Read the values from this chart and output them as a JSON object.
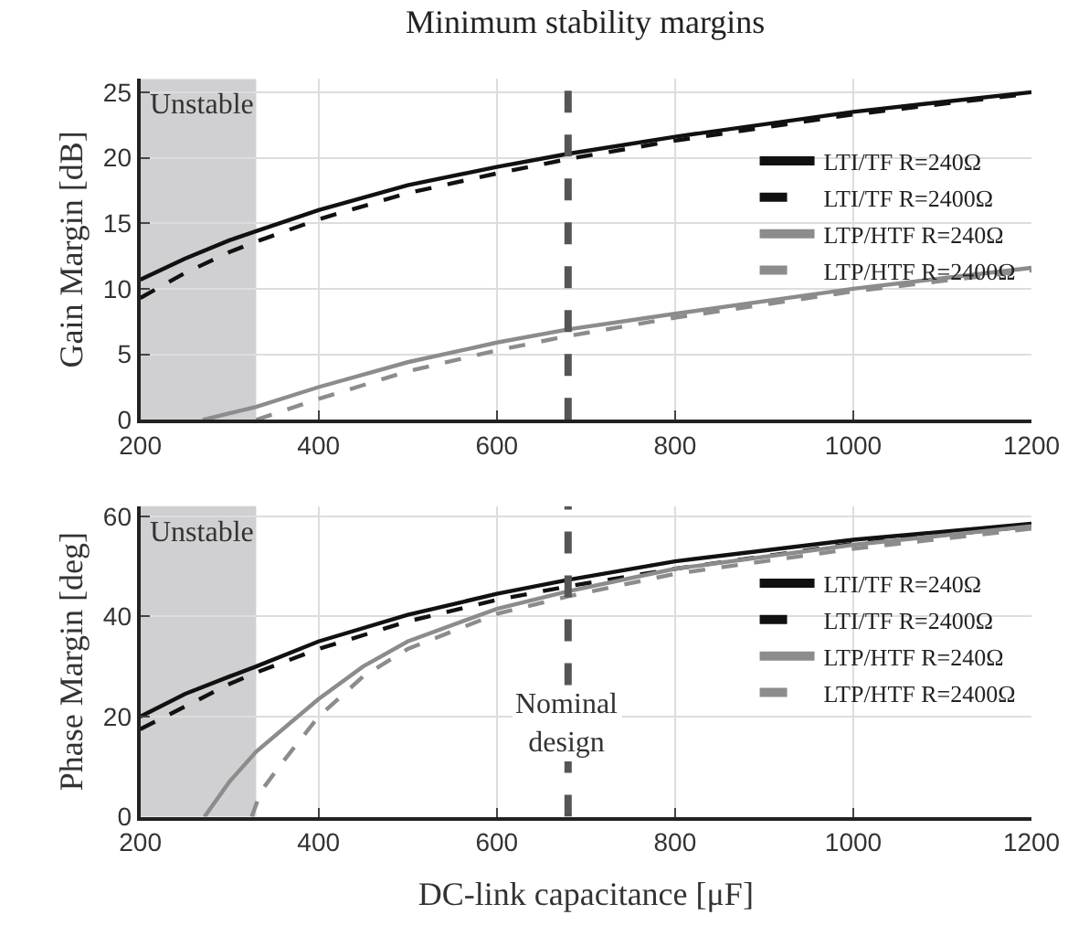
{
  "chart_data": [
    {
      "type": "line",
      "title": "Minimum stability margins",
      "ylabel": "Gain Margin [dB]",
      "xlim": [
        200,
        1200
      ],
      "xticks": [
        200,
        400,
        600,
        800,
        1000,
        1200
      ],
      "ylim": [
        0,
        26
      ],
      "yticks": [
        0,
        5,
        10,
        15,
        20,
        25
      ],
      "grid": true,
      "legend": "top right",
      "line_style": "solid",
      "marker": "none",
      "series": [
        {
          "name": "LTI/TF R=240Ω",
          "color": "#111111",
          "x": [
            200,
            250,
            300,
            330,
            400,
            500,
            600,
            680,
            800,
            1000,
            1200
          ],
          "values": [
            10.7,
            12.3,
            13.7,
            14.4,
            16.0,
            17.9,
            19.3,
            20.3,
            21.6,
            23.5,
            25.0
          ]
        },
        {
          "name": "LTI/TF R=2400Ω",
          "color": "#111111",
          "line_style": "dashed",
          "x": [
            200,
            250,
            300,
            330,
            400,
            500,
            600,
            680,
            800,
            1000,
            1200
          ],
          "values": [
            9.3,
            11.2,
            12.8,
            13.6,
            15.3,
            17.3,
            18.8,
            19.9,
            21.3,
            23.3,
            24.9
          ]
        },
        {
          "name": "LTP/HTF R=240Ω",
          "color": "#8c8c8c",
          "x": [
            270,
            300,
            330,
            400,
            500,
            600,
            680,
            800,
            1000,
            1200
          ],
          "values": [
            0,
            0.5,
            1.0,
            2.5,
            4.4,
            5.9,
            6.9,
            8.1,
            10.0,
            11.6
          ]
        },
        {
          "name": "LTP/HTF R=2400Ω",
          "color": "#8c8c8c",
          "line_style": "dashed",
          "x": [
            330,
            400,
            500,
            600,
            680,
            800,
            1000,
            1200
          ],
          "values": [
            0,
            1.6,
            3.7,
            5.3,
            6.4,
            7.8,
            9.8,
            11.4
          ]
        }
      ],
      "bands": [
        {
          "axis": "x",
          "from": 200,
          "to": 330,
          "label": "Unstable",
          "color": "#d0d0d2"
        }
      ],
      "ref_lines": [
        {
          "axis": "x",
          "value": 680,
          "color": "#555555",
          "line_style": "dashed"
        }
      ]
    },
    {
      "type": "line",
      "xlabel": "DC-link capacitance [μF]",
      "ylabel": "Phase Margin [deg]",
      "xlim": [
        200,
        1200
      ],
      "xticks": [
        200,
        400,
        600,
        800,
        1000,
        1200
      ],
      "ylim": [
        0,
        62
      ],
      "yticks": [
        0,
        20,
        40,
        60
      ],
      "grid": true,
      "legend": "top right",
      "line_style": "solid",
      "marker": "none",
      "series": [
        {
          "name": "LTI/TF R=240Ω",
          "color": "#111111",
          "x": [
            200,
            250,
            300,
            330,
            400,
            500,
            600,
            680,
            800,
            1000,
            1200
          ],
          "values": [
            20,
            24.5,
            28,
            30,
            35,
            40.3,
            44.5,
            47.3,
            51,
            55.3,
            58.5
          ]
        },
        {
          "name": "LTI/TF R=2400Ω",
          "color": "#111111",
          "line_style": "dashed",
          "x": [
            200,
            250,
            300,
            330,
            400,
            500,
            600,
            680,
            800,
            1000,
            1200
          ],
          "values": [
            17.5,
            22,
            26.5,
            28.8,
            33.5,
            39,
            43.3,
            46,
            49.5,
            54.5,
            58
          ]
        },
        {
          "name": "LTP/HTF R=240Ω",
          "color": "#8c8c8c",
          "x": [
            272,
            300,
            330,
            400,
            450,
            500,
            600,
            680,
            800,
            1000,
            1200
          ],
          "values": [
            0,
            7,
            13,
            23.5,
            30,
            35,
            41.5,
            45,
            49.5,
            54.3,
            58
          ]
        },
        {
          "name": "LTP/HTF R=2400Ω",
          "color": "#8c8c8c",
          "line_style": "dashed",
          "x": [
            325,
            335,
            360,
            400,
            450,
            500,
            600,
            680,
            800,
            1000,
            1200
          ],
          "values": [
            0,
            5,
            11,
            20,
            28,
            33.5,
            40.5,
            44,
            48.5,
            53.5,
            57.5
          ]
        }
      ],
      "bands": [
        {
          "axis": "x",
          "from": 200,
          "to": 330,
          "label": "Unstable",
          "color": "#d0d0d2"
        }
      ],
      "ref_lines": [
        {
          "axis": "x",
          "value": 680,
          "label": "Nominal design",
          "color": "#555555",
          "line_style": "dashed"
        }
      ]
    }
  ]
}
